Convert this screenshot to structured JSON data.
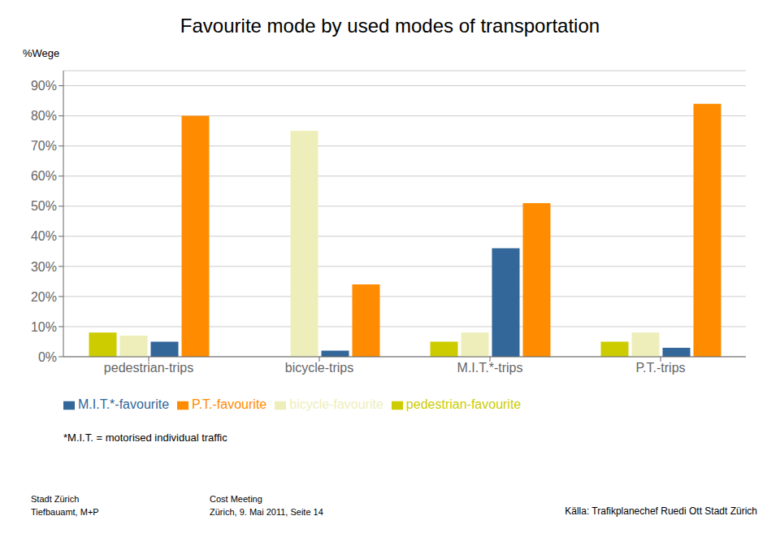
{
  "chart_data": {
    "type": "bar",
    "title": "Favourite mode by used modes of transportation",
    "ylabel": "%Wege",
    "categories": [
      "pedestrian-trips",
      "bicycle-trips",
      "M.I.T.*-trips",
      "P.T.-trips"
    ],
    "series": [
      {
        "name": "pedestrian-favourite",
        "color": "#CCCC00",
        "values": [
          8,
          0,
          5,
          5
        ]
      },
      {
        "name": "bicycle-favourite",
        "color": "#EEEEBB",
        "values": [
          7,
          75,
          8,
          8
        ]
      },
      {
        "name": "M.I.T.*-favourite",
        "color": "#336699",
        "values": [
          5,
          2,
          36,
          3
        ]
      },
      {
        "name": "P.T.-favourite",
        "color": "#FF8C00",
        "values": [
          80,
          24,
          51,
          84
        ]
      }
    ],
    "ylim": [
      0,
      95
    ],
    "yticks": [
      {
        "value": 0,
        "label": "0%"
      },
      {
        "value": 10,
        "label": "10%"
      },
      {
        "value": 20,
        "label": "20%"
      },
      {
        "value": 30,
        "label": "30%"
      },
      {
        "value": 40,
        "label": "40%"
      },
      {
        "value": 50,
        "label": "50%"
      },
      {
        "value": 60,
        "label": "60%"
      },
      {
        "value": 70,
        "label": "70%"
      },
      {
        "value": 80,
        "label": "80%"
      },
      {
        "value": 90,
        "label": "90%"
      }
    ],
    "grid": true,
    "legend": "bottom",
    "annotations": [
      "*M.I.T. = motorised individual traffic",
      "Stadt Zürich\nTiefbauamt, M+P",
      "Cost Meeting\nZürich, 9. Mai 2011, Seite 14",
      "Källa: Trafikplanechef Ruedi Ott Stadt Zürich"
    ]
  }
}
